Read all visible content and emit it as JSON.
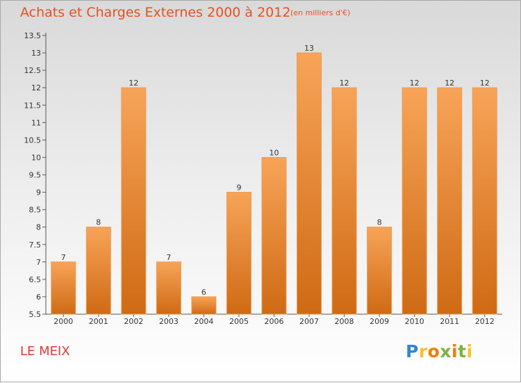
{
  "title": "Achats et Charges Externes 2000 à 2012",
  "subtitle": "(en milliers d'€)",
  "location": "LE MEIX",
  "logo": {
    "text": "Proxiti",
    "colors": [
      "#2f86d6",
      "#7cb342",
      "#f57c00",
      "#fbc02d"
    ]
  },
  "chart_data": {
    "type": "bar",
    "title": "Achats et Charges Externes 2000 à 2012",
    "subtitle": "(en milliers d'€)",
    "xlabel": "",
    "ylabel": "",
    "categories": [
      "2000",
      "2001",
      "2002",
      "2003",
      "2004",
      "2005",
      "2006",
      "2007",
      "2008",
      "2009",
      "2010",
      "2011",
      "2012"
    ],
    "values": [
      7,
      8,
      12,
      7,
      6,
      9,
      10,
      13,
      12,
      8,
      12,
      12,
      12
    ],
    "data_labels": [
      "7",
      "8",
      "12",
      "7",
      "6",
      "9",
      "10",
      "13",
      "12",
      "8",
      "12",
      "12",
      "12"
    ],
    "ylim": [
      5.5,
      13.5
    ],
    "yticks": [
      "5.5",
      "6",
      "6.5",
      "7",
      "7.5",
      "8",
      "8.5",
      "9",
      "9.5",
      "10",
      "10.5",
      "11",
      "11.5",
      "12",
      "12.5",
      "13",
      "13.5"
    ],
    "grid": false,
    "legend": "none",
    "colors": {
      "bar_top": "#f7a458",
      "bar_bottom": "#cf6a14",
      "bar_edge": "#ee9a4e",
      "axis": "#555555",
      "text": "#333333"
    }
  }
}
